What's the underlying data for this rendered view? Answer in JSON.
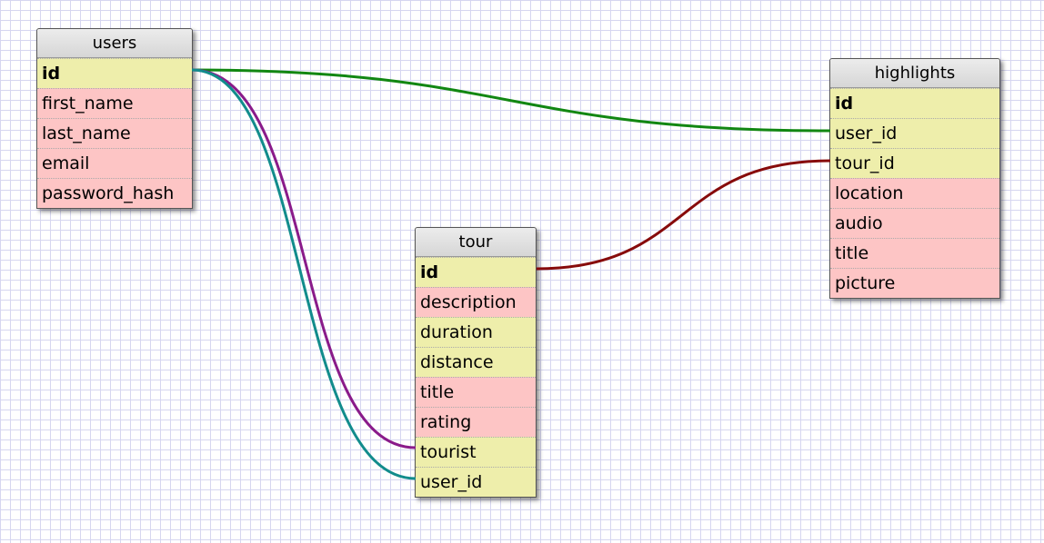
{
  "tables": {
    "users": {
      "name": "users",
      "fields": [
        "id",
        "first_name",
        "last_name",
        "email",
        "password_hash"
      ]
    },
    "tour": {
      "name": "tour",
      "fields": [
        "id",
        "description",
        "duration",
        "distance",
        "title",
        "rating",
        "tourist",
        "user_id"
      ]
    },
    "highlights": {
      "name": "highlights",
      "fields": [
        "id",
        "user_id",
        "tour_id",
        "location",
        "audio",
        "title",
        "picture"
      ]
    }
  },
  "colors": {
    "primary_key_fill": "#eeeeab",
    "foreign_key_fill": "#eeeeab",
    "field_fill": "#fdc5c5",
    "link_users_highlights": "#128712",
    "link_tour_highlights": "#870b0b",
    "link_users_tour_tourist": "#8a1b8a",
    "link_users_tour_user_id": "#128c8c"
  }
}
